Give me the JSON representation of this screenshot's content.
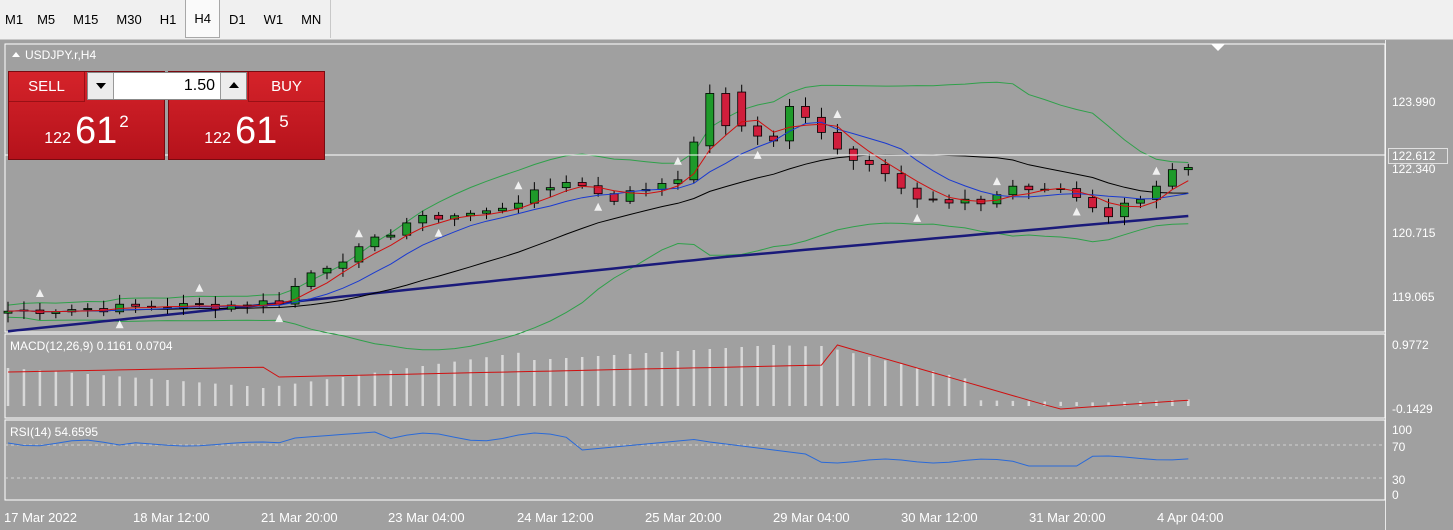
{
  "toolbar": {
    "timeframes": [
      {
        "label": "M1",
        "active": false
      },
      {
        "label": "M5",
        "active": false
      },
      {
        "label": "M15",
        "active": false
      },
      {
        "label": "M30",
        "active": false
      },
      {
        "label": "H1",
        "active": false
      },
      {
        "label": "H4",
        "active": true
      },
      {
        "label": "D1",
        "active": false
      },
      {
        "label": "W1",
        "active": false
      },
      {
        "label": "MN",
        "active": false
      }
    ]
  },
  "chart": {
    "symbol_label": "USDJPY.r,H4",
    "current_price": "122.612",
    "price_axis": [
      "123.990",
      "122.340",
      "120.715",
      "119.065"
    ],
    "time_axis": [
      "17 Mar 2022",
      "18 Mar 12:00",
      "21 Mar 20:00",
      "23 Mar 04:00",
      "24 Mar 12:00",
      "25 Mar 20:00",
      "29 Mar 04:00",
      "30 Mar 12:00",
      "31 Mar 20:00",
      "4 Apr 04:00"
    ],
    "colors": {
      "background": "#a0a0a0",
      "bull": "#1e9a2a",
      "bear": "#d01e3c",
      "ma_fast": "#d01010",
      "ma_mid": "#1a3ad0",
      "ma_slow": "#000000",
      "ma_long": "#1a1a7a",
      "bands": "#2fa04a"
    }
  },
  "trade_panel": {
    "sell_label": "SELL",
    "buy_label": "BUY",
    "lot": "1.50",
    "sell_price": {
      "prefix": "122",
      "main": "61",
      "pip": "2"
    },
    "buy_price": {
      "prefix": "122",
      "main": "61",
      "pip": "5"
    }
  },
  "macd": {
    "label": "MACD(12,26,9) 0.1161 0.0704",
    "axis": [
      "0.9772",
      "-0.1429"
    ]
  },
  "rsi": {
    "label": "RSI(14) 54.6595",
    "axis": [
      "100",
      "70",
      "30",
      "0"
    ]
  }
}
